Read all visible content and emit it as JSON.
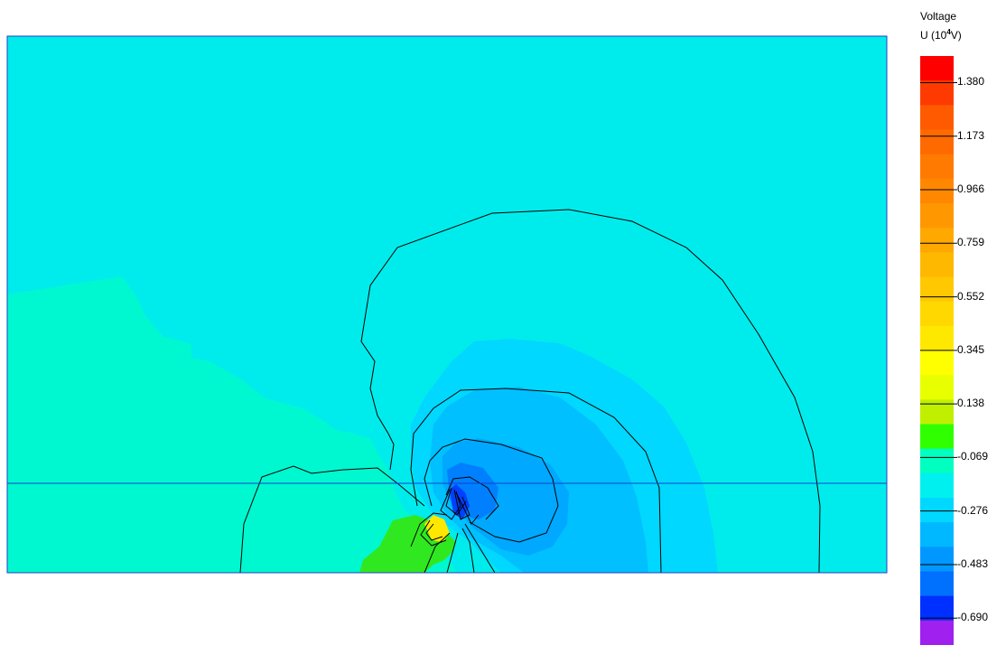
{
  "chart_data": {
    "type": "heatmap",
    "title": "",
    "legend": {
      "title_line1": "Voltage",
      "title_prefix": "U (10",
      "title_exponent": "4",
      "title_suffix": "V)",
      "placement": "right",
      "tick_labels": [
        "1.380",
        "1.173",
        "0.966",
        "0.759",
        "0.552",
        "0.345",
        "0.138",
        "-0.069",
        "-0.276",
        "-0.483",
        "-0.690"
      ],
      "tick_values": [
        1.38,
        1.173,
        0.966,
        0.759,
        0.552,
        0.345,
        0.138,
        -0.069,
        -0.276,
        -0.483,
        -0.69
      ],
      "value_range": [
        -0.794,
        1.483
      ],
      "levels": 22,
      "level_colors": [
        "#FF0000",
        "#FF3A00",
        "#FF5A00",
        "#FF6A00",
        "#FF7A00",
        "#FF8800",
        "#FF9800",
        "#FFA800",
        "#FFB800",
        "#FFC800",
        "#FFD800",
        "#FFE800",
        "#FFFF00",
        "#E8FF00",
        "#C0F000",
        "#30FF00",
        "#00FFC0",
        "#00F0F0",
        "#00D8FF",
        "#00B8FF",
        "#0098FF",
        "#0070FF",
        "#0030FF",
        "#A020F0"
      ]
    }
  }
}
